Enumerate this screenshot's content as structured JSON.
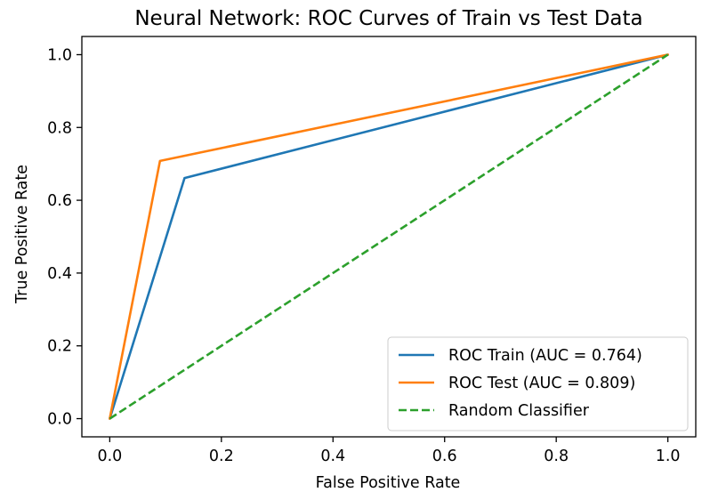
{
  "chart_data": {
    "type": "line",
    "title": "Neural Network: ROC Curves of Train vs Test Data",
    "xlabel": "False Positive Rate",
    "ylabel": "True Positive Rate",
    "xlim": [
      -0.05,
      1.05
    ],
    "ylim": [
      -0.05,
      1.05
    ],
    "xticks": [
      0.0,
      0.2,
      0.4,
      0.6,
      0.8,
      1.0
    ],
    "yticks": [
      0.0,
      0.2,
      0.4,
      0.6,
      0.8,
      1.0
    ],
    "xtick_labels": [
      "0.0",
      "0.2",
      "0.4",
      "0.6",
      "0.8",
      "1.0"
    ],
    "ytick_labels": [
      "0.0",
      "0.2",
      "0.4",
      "0.6",
      "0.8",
      "1.0"
    ],
    "grid": false,
    "legend_position": "lower-right",
    "series": [
      {
        "name": "ROC Train (AUC = 0.764)",
        "color": "#1f77b4",
        "style": "solid",
        "x": [
          0.0,
          0.134,
          1.0
        ],
        "y": [
          0.0,
          0.661,
          1.0
        ]
      },
      {
        "name": "ROC Test (AUC = 0.809)",
        "color": "#ff7f0e",
        "style": "solid",
        "x": [
          0.0,
          0.09,
          1.0
        ],
        "y": [
          0.0,
          0.708,
          1.0
        ]
      },
      {
        "name": "Random Classifier",
        "color": "#2ca02c",
        "style": "dashed",
        "x": [
          0.0,
          1.0
        ],
        "y": [
          0.0,
          1.0
        ]
      }
    ]
  }
}
